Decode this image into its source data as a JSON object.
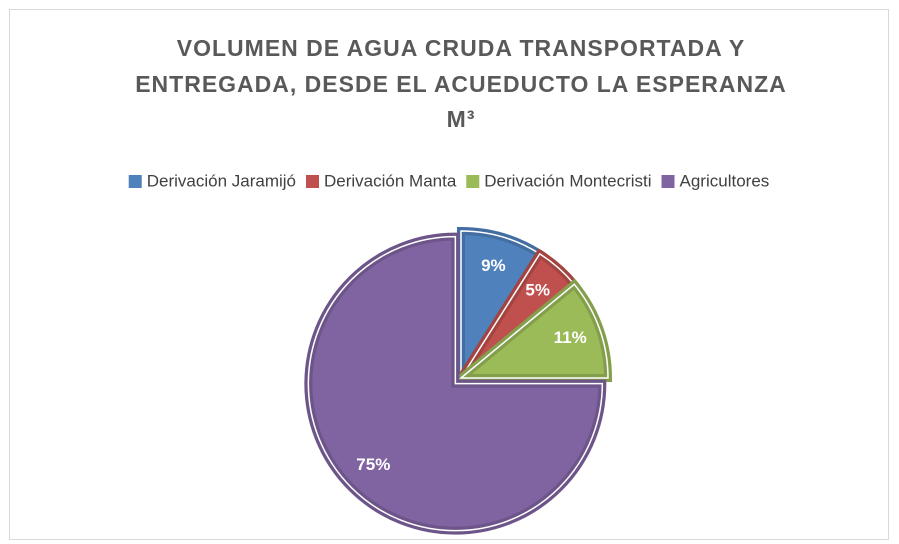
{
  "chart_data": {
    "type": "pie",
    "title": [
      "VOLUMEN DE AGUA CRUDA TRANSPORTADA Y",
      "ENTREGADA, DESDE EL ACUEDUCTO LA ESPERANZA",
      "M³"
    ],
    "categories": [
      "Derivación Jaramijó",
      "Derivación Manta",
      "Derivación Montecristi",
      "Agricultores"
    ],
    "values": [
      9,
      5,
      11,
      75
    ],
    "value_labels": [
      "9%",
      "5%",
      "11%",
      "75%"
    ],
    "colors": [
      "#4f81bd",
      "#c0504d",
      "#9bbb59",
      "#8064a2"
    ],
    "legend": "top"
  }
}
